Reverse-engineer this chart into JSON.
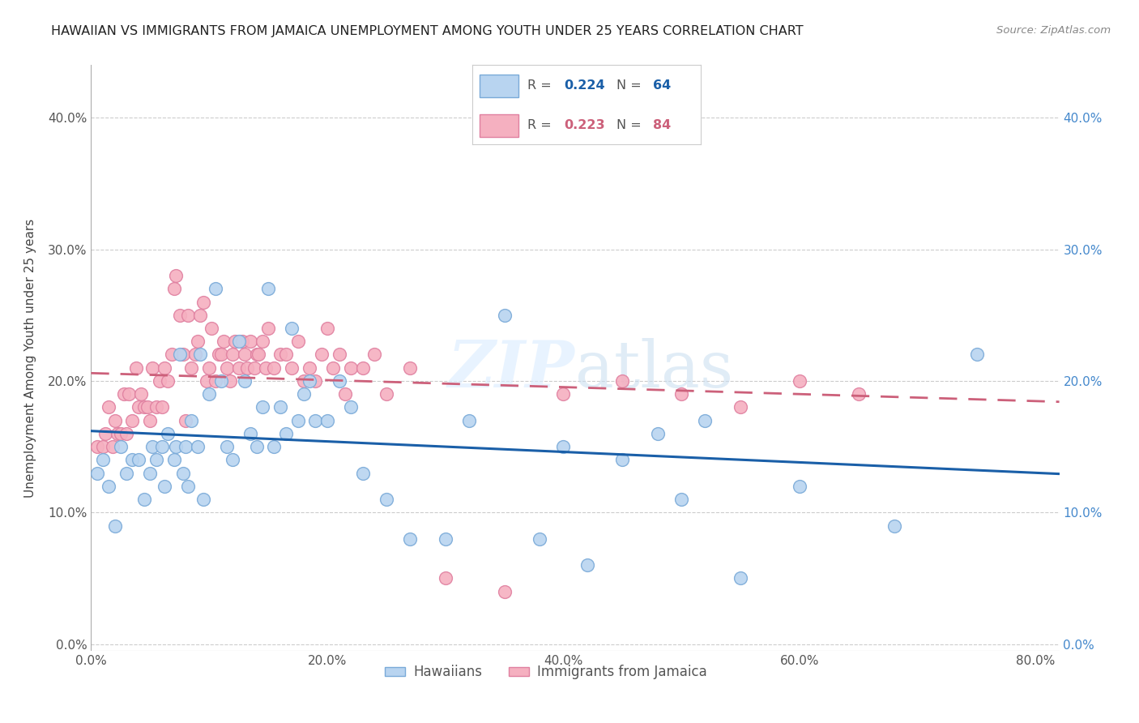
{
  "title": "HAWAIIAN VS IMMIGRANTS FROM JAMAICA UNEMPLOYMENT AMONG YOUTH UNDER 25 YEARS CORRELATION CHART",
  "source": "Source: ZipAtlas.com",
  "ylabel_label": "Unemployment Among Youth under 25 years",
  "xlim": [
    0.0,
    0.82
  ],
  "ylim": [
    -0.005,
    0.44
  ],
  "legend_hawaiians_R": "0.224",
  "legend_hawaiians_N": "64",
  "legend_jamaica_R": "0.223",
  "legend_jamaica_N": "84",
  "hawaiian_color": "#b8d4f0",
  "jamaican_color": "#f5b0c0",
  "hawaiian_edge_color": "#7aaad8",
  "jamaican_edge_color": "#e080a0",
  "hawaiian_line_color": "#1a5fa8",
  "jamaican_line_color": "#cc607a",
  "watermark_color": "#ccddee",
  "background_color": "#ffffff",
  "hawaiian_x": [
    0.005,
    0.01,
    0.015,
    0.02,
    0.025,
    0.03,
    0.035,
    0.04,
    0.045,
    0.05,
    0.052,
    0.055,
    0.06,
    0.062,
    0.065,
    0.07,
    0.072,
    0.075,
    0.078,
    0.08,
    0.082,
    0.085,
    0.09,
    0.092,
    0.095,
    0.1,
    0.105,
    0.11,
    0.115,
    0.12,
    0.125,
    0.13,
    0.135,
    0.14,
    0.145,
    0.15,
    0.155,
    0.16,
    0.165,
    0.17,
    0.175,
    0.18,
    0.185,
    0.19,
    0.2,
    0.21,
    0.22,
    0.23,
    0.25,
    0.27,
    0.3,
    0.32,
    0.35,
    0.38,
    0.4,
    0.42,
    0.45,
    0.48,
    0.5,
    0.52,
    0.55,
    0.6,
    0.68,
    0.75
  ],
  "hawaiian_y": [
    0.13,
    0.14,
    0.12,
    0.09,
    0.15,
    0.13,
    0.14,
    0.14,
    0.11,
    0.13,
    0.15,
    0.14,
    0.15,
    0.12,
    0.16,
    0.14,
    0.15,
    0.22,
    0.13,
    0.15,
    0.12,
    0.17,
    0.15,
    0.22,
    0.11,
    0.19,
    0.27,
    0.2,
    0.15,
    0.14,
    0.23,
    0.2,
    0.16,
    0.15,
    0.18,
    0.27,
    0.15,
    0.18,
    0.16,
    0.24,
    0.17,
    0.19,
    0.2,
    0.17,
    0.17,
    0.2,
    0.18,
    0.13,
    0.11,
    0.08,
    0.08,
    0.17,
    0.25,
    0.08,
    0.15,
    0.06,
    0.14,
    0.16,
    0.11,
    0.17,
    0.05,
    0.12,
    0.09,
    0.22
  ],
  "jamaican_x": [
    0.005,
    0.01,
    0.012,
    0.015,
    0.018,
    0.02,
    0.022,
    0.025,
    0.028,
    0.03,
    0.032,
    0.035,
    0.038,
    0.04,
    0.042,
    0.045,
    0.048,
    0.05,
    0.052,
    0.055,
    0.058,
    0.06,
    0.062,
    0.065,
    0.068,
    0.07,
    0.072,
    0.075,
    0.078,
    0.08,
    0.082,
    0.085,
    0.088,
    0.09,
    0.092,
    0.095,
    0.098,
    0.1,
    0.102,
    0.105,
    0.108,
    0.11,
    0.112,
    0.115,
    0.118,
    0.12,
    0.122,
    0.125,
    0.128,
    0.13,
    0.132,
    0.135,
    0.138,
    0.14,
    0.142,
    0.145,
    0.148,
    0.15,
    0.155,
    0.16,
    0.165,
    0.17,
    0.175,
    0.18,
    0.185,
    0.19,
    0.195,
    0.2,
    0.205,
    0.21,
    0.215,
    0.22,
    0.23,
    0.24,
    0.25,
    0.27,
    0.3,
    0.35,
    0.4,
    0.45,
    0.5,
    0.55,
    0.6,
    0.65
  ],
  "jamaican_y": [
    0.15,
    0.15,
    0.16,
    0.18,
    0.15,
    0.17,
    0.16,
    0.16,
    0.19,
    0.16,
    0.19,
    0.17,
    0.21,
    0.18,
    0.19,
    0.18,
    0.18,
    0.17,
    0.21,
    0.18,
    0.2,
    0.18,
    0.21,
    0.2,
    0.22,
    0.27,
    0.28,
    0.25,
    0.22,
    0.17,
    0.25,
    0.21,
    0.22,
    0.23,
    0.25,
    0.26,
    0.2,
    0.21,
    0.24,
    0.2,
    0.22,
    0.22,
    0.23,
    0.21,
    0.2,
    0.22,
    0.23,
    0.21,
    0.23,
    0.22,
    0.21,
    0.23,
    0.21,
    0.22,
    0.22,
    0.23,
    0.21,
    0.24,
    0.21,
    0.22,
    0.22,
    0.21,
    0.23,
    0.2,
    0.21,
    0.2,
    0.22,
    0.24,
    0.21,
    0.22,
    0.19,
    0.21,
    0.21,
    0.22,
    0.19,
    0.21,
    0.05,
    0.04,
    0.19,
    0.2,
    0.19,
    0.18,
    0.2,
    0.19
  ],
  "xtick_vals": [
    0.0,
    0.2,
    0.4,
    0.6,
    0.8
  ],
  "ytick_vals": [
    0.0,
    0.1,
    0.2,
    0.3,
    0.4
  ]
}
